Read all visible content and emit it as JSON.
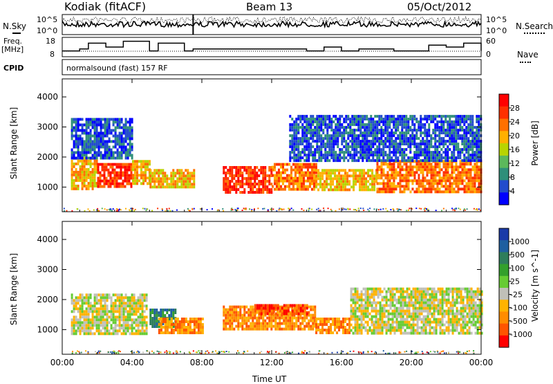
{
  "header": {
    "station": "Kodiak (fitACF)",
    "beam": "Beam 13",
    "date": "05/Oct/2012"
  },
  "left_labels": {
    "nsky": "N.Sky",
    "freq_line1": "Freq.",
    "freq_line2": "[MHz]",
    "cpid": "CPID"
  },
  "right_labels": {
    "nsearch": "N.Search",
    "nave": "Nave"
  },
  "cpid_text": "normalsound (fast) 157 RF",
  "colors": {
    "power": [
      "#0000ff",
      "#224ccc",
      "#2f8f7a",
      "#5cb85c",
      "#b8d400",
      "#ffb000",
      "#ff7000",
      "#ff3000",
      "#ff0000"
    ],
    "velocity": [
      "#ff0000",
      "#ff5500",
      "#ff8c00",
      "#ffb300",
      "#c0c0b8",
      "#66cc33",
      "#33a02c",
      "#2e7d5b",
      "#1f5fa0",
      "#1a3aa8"
    ]
  },
  "chart_data": [
    {
      "type": "line",
      "panel": "noise",
      "series": [
        {
          "name": "N.Sky"
        },
        {
          "name": "N.Search"
        }
      ],
      "yticks_left": [
        "10^5",
        "10^0"
      ],
      "yticks_right": [
        "10^5",
        "10^0"
      ]
    },
    {
      "type": "line",
      "panel": "frequency",
      "series": [
        {
          "name": "Freq.",
          "x": [
            0,
            1,
            1.5,
            2.5,
            3.5,
            5,
            5.5,
            7,
            7.5,
            13,
            14,
            15,
            16,
            17,
            19,
            21,
            22,
            23,
            24
          ],
          "y": [
            11,
            12,
            15,
            13,
            16,
            11,
            15,
            11,
            12,
            12,
            11,
            13,
            11,
            12,
            11,
            14,
            13,
            15,
            11
          ]
        },
        {
          "name": "Nave",
          "x": [
            0,
            4,
            5,
            12,
            20,
            24
          ],
          "y": [
            20,
            22,
            20,
            21,
            20,
            22
          ]
        }
      ],
      "yticks_left": [
        "18",
        "8"
      ],
      "yticks_right": [
        "60",
        "0"
      ]
    },
    {
      "type": "heatmap",
      "panel": "power",
      "xlabel": "",
      "ylabel": "Slant Range [km]",
      "yticks": [
        "1000",
        "2000",
        "3000",
        "4000"
      ],
      "ylim": [
        180,
        4600
      ],
      "colorbar_label": "Power [dB]",
      "colorbar_ticks": [
        "4",
        "8",
        "12",
        "16",
        "20",
        "24",
        "28"
      ],
      "bands": [
        {
          "x0": 0.5,
          "x1": 2.0,
          "y0": 900,
          "y1": 2000,
          "level": 5
        },
        {
          "x0": 2.0,
          "x1": 4.0,
          "y0": 1000,
          "y1": 1800,
          "level": 7
        },
        {
          "x0": 4.0,
          "x1": 5.0,
          "y0": 1100,
          "y1": 1900,
          "level": 5
        },
        {
          "x0": 5.0,
          "x1": 7.5,
          "y0": 1000,
          "y1": 1600,
          "level": 5
        },
        {
          "x0": 9.2,
          "x1": 12.0,
          "y0": 850,
          "y1": 1700,
          "level": 7
        },
        {
          "x0": 12.0,
          "x1": 14.5,
          "y0": 950,
          "y1": 1800,
          "level": 6
        },
        {
          "x0": 14.5,
          "x1": 18.0,
          "y0": 900,
          "y1": 1600,
          "level": 5
        },
        {
          "x0": 18.0,
          "x1": 24.0,
          "y0": 850,
          "y1": 1900,
          "level": 6
        },
        {
          "x0": 0.5,
          "x1": 4.0,
          "y0": 2000,
          "y1": 3300,
          "level": 1
        },
        {
          "x0": 13.0,
          "x1": 24.0,
          "y0": 1900,
          "y1": 3400,
          "level": 1
        }
      ]
    },
    {
      "type": "heatmap",
      "panel": "velocity",
      "xlabel": "Time UT",
      "ylabel": "Slant Range [km]",
      "xticks": [
        "00:00",
        "04:00",
        "08:00",
        "12:00",
        "16:00",
        "20:00",
        "00:00"
      ],
      "yticks": [
        "1000",
        "2000",
        "3000",
        "4000"
      ],
      "ylim": [
        180,
        4600
      ],
      "colorbar_label": "Velocity [m s^-1]",
      "colorbar_ticks": [
        "1000",
        "500",
        "100",
        "25",
        "-25",
        "-100",
        "-500",
        "-1000"
      ],
      "bands": [
        {
          "x0": 0.5,
          "x1": 4.8,
          "y0": 850,
          "y1": 2200,
          "level": 4
        },
        {
          "x0": 5.0,
          "x1": 6.5,
          "y0": 1100,
          "y1": 1700,
          "level": 7
        },
        {
          "x0": 5.5,
          "x1": 8.0,
          "y0": 900,
          "y1": 1400,
          "level": 2
        },
        {
          "x0": 9.2,
          "x1": 14.5,
          "y0": 1050,
          "y1": 1800,
          "level": 2
        },
        {
          "x0": 11.0,
          "x1": 14.0,
          "y0": 1500,
          "y1": 1850,
          "level": 1
        },
        {
          "x0": 14.5,
          "x1": 16.5,
          "y0": 900,
          "y1": 1400,
          "level": 2
        },
        {
          "x0": 16.5,
          "x1": 24.0,
          "y0": 850,
          "y1": 2400,
          "level": 4
        }
      ]
    }
  ]
}
